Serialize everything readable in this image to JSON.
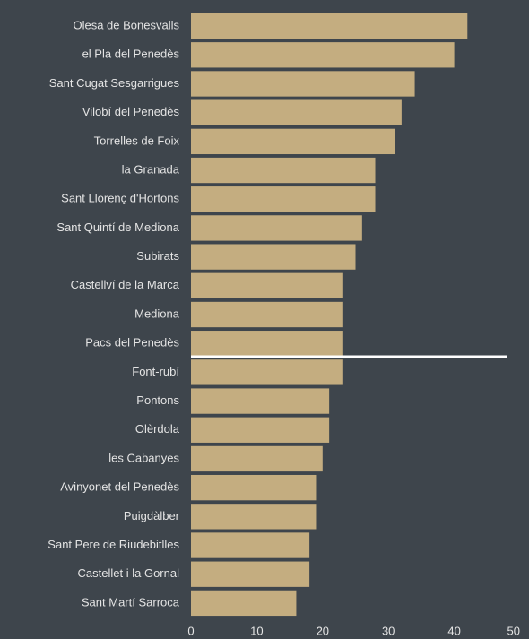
{
  "chart_data": {
    "type": "bar",
    "orientation": "horizontal",
    "categories": [
      "Olesa de Bonesvalls",
      "el Pla del Penedès",
      "Sant Cugat Sesgarrigues",
      "Vilobí del Penedès",
      "Torrelles de Foix",
      "la Granada",
      "Sant Llorenç d'Hortons",
      "Sant Quintí de Mediona",
      "Subirats",
      "Castellví de la Marca",
      "Mediona",
      "Pacs del Penedès",
      "Font-rubí",
      "Pontons",
      "Olèrdola",
      "les Cabanyes",
      "Avinyonet del Penedès",
      "Puigdàlber",
      "Sant Pere de Riudebitlles",
      "Castellet i la Gornal",
      "Sant Martí Sarroca"
    ],
    "values": [
      42,
      40,
      34,
      32,
      31,
      28,
      28,
      26,
      25,
      23,
      23,
      23,
      23,
      21,
      21,
      20,
      19,
      19,
      18,
      18,
      16
    ],
    "color": "#c4ad80",
    "xlim": [
      0,
      50
    ],
    "xticks": [
      0,
      10,
      20,
      30,
      40,
      50
    ],
    "grid": false
  }
}
